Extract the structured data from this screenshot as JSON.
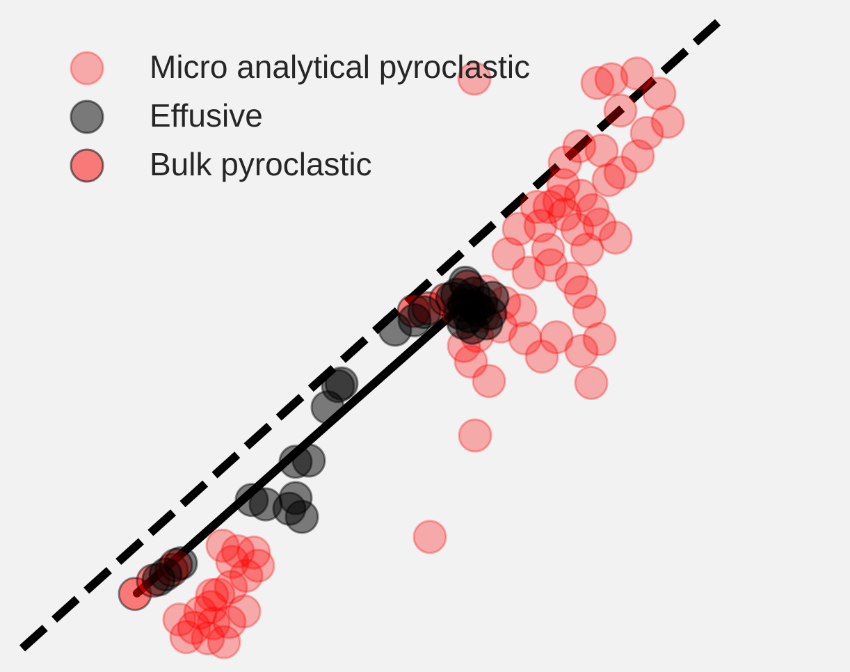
{
  "chart_data": {
    "type": "scatter",
    "title": "",
    "xlabel": "",
    "ylabel": "",
    "xlim": [
      0,
      100
    ],
    "ylim": [
      0,
      100
    ],
    "grid": false,
    "legend_position": "top-left",
    "series": [
      {
        "name": "Micro analytical pyroclastic",
        "color": "#ff0000",
        "opacity": 0.3,
        "points": [
          [
            82.7,
            90.3
          ],
          [
            84.7,
            90.9
          ],
          [
            86.0,
            85.9
          ],
          [
            88.4,
            91.8
          ],
          [
            91.6,
            88.6
          ],
          [
            92.8,
            84.1
          ],
          [
            89.8,
            82.3
          ],
          [
            88.5,
            78.6
          ],
          [
            86.0,
            76.0
          ],
          [
            83.3,
            79.5
          ],
          [
            80.1,
            80.2
          ],
          [
            78.0,
            77.6
          ],
          [
            77.8,
            74.0
          ],
          [
            77.2,
            71.4
          ],
          [
            78.0,
            69.3
          ],
          [
            80.3,
            72.3
          ],
          [
            82.0,
            70.0
          ],
          [
            84.3,
            74.8
          ],
          [
            83.0,
            67.7
          ],
          [
            85.3,
            65.6
          ],
          [
            81.2,
            63.7
          ],
          [
            79.8,
            66.9
          ],
          [
            75.6,
            63.7
          ],
          [
            74.5,
            67.5
          ],
          [
            75.8,
            70.5
          ],
          [
            71.4,
            67.0
          ],
          [
            69.9,
            63.0
          ],
          [
            72.8,
            60.0
          ],
          [
            76.0,
            61.2
          ],
          [
            79.0,
            59.1
          ],
          [
            80.3,
            56.9
          ],
          [
            81.5,
            53.8
          ],
          [
            83.0,
            49.4
          ],
          [
            80.4,
            47.5
          ],
          [
            81.8,
            42.4
          ],
          [
            76.8,
            49.7
          ],
          [
            74.7,
            46.6
          ],
          [
            72.3,
            49.5
          ],
          [
            71.6,
            54.0
          ],
          [
            69.3,
            55.2
          ],
          [
            66.3,
            53.1
          ],
          [
            68.8,
            51.4
          ],
          [
            65.4,
            49.9
          ],
          [
            63.5,
            48.3
          ],
          [
            64.5,
            45.8
          ],
          [
            66.6,
            57.0
          ],
          [
            62.6,
            53.8
          ],
          [
            67.1,
            42.7
          ],
          [
            65.1,
            34.0
          ],
          [
            58.6,
            17.8
          ],
          [
            65.0,
            91.0
          ],
          [
            74.0,
            70.5
          ],
          [
            33.9,
            13.2
          ],
          [
            32.2,
            11.6
          ],
          [
            30.0,
            9.8
          ],
          [
            28.2,
            8.6
          ],
          [
            27.1,
            6.6
          ],
          [
            25.6,
            5.7
          ],
          [
            24.7,
            3.3
          ],
          [
            26.7,
            1.6
          ],
          [
            29.0,
            1.0
          ],
          [
            23.6,
            1.8
          ],
          [
            22.6,
            4.6
          ],
          [
            27.5,
            4.0
          ],
          [
            29.8,
            4.2
          ],
          [
            31.9,
            5.9
          ],
          [
            30.2,
            13.8
          ],
          [
            28.8,
            16.4
          ],
          [
            31.0,
            15.5
          ],
          [
            33.3,
            15.3
          ],
          [
            27.3,
            8.5
          ]
        ]
      },
      {
        "name": "Effusive",
        "color": "#000000",
        "opacity": 0.5,
        "points": [
          [
            20.6,
            11.8
          ],
          [
            19.6,
            11.0
          ],
          [
            22.8,
            13.6
          ],
          [
            33.0,
            23.7
          ],
          [
            35.0,
            23.0
          ],
          [
            38.4,
            22.3
          ],
          [
            39.3,
            24.0
          ],
          [
            40.2,
            21.0
          ],
          [
            39.3,
            29.8
          ],
          [
            41.2,
            30.0
          ],
          [
            43.9,
            38.5
          ],
          [
            45.4,
            41.9
          ],
          [
            45.9,
            42.3
          ],
          [
            53.6,
            50.9
          ],
          [
            56.4,
            52.4
          ],
          [
            57.8,
            53.7
          ],
          [
            61.8,
            55.9
          ],
          [
            63.4,
            52.0
          ],
          [
            64.7,
            51.2
          ],
          [
            66.7,
            51.9
          ],
          [
            67.3,
            53.5
          ],
          [
            67.6,
            56.0
          ],
          [
            65.0,
            54.6
          ],
          [
            63.5,
            54.8
          ],
          [
            62.5,
            56.5
          ],
          [
            63.7,
            58.4
          ],
          [
            64.3,
            53.0
          ],
          [
            66.0,
            55.2
          ],
          [
            64.0,
            55.6
          ],
          [
            64.9,
            56.7
          ],
          [
            65.6,
            54.0
          ],
          [
            63.0,
            53.5
          ]
        ]
      },
      {
        "name": "Bulk pyroclastic",
        "color": "#ff0000",
        "opacity": 0.5,
        "points": [
          [
            16.2,
            8.7
          ],
          [
            18.8,
            10.8
          ],
          [
            21.5,
            12.5
          ],
          [
            22.1,
            13.3
          ],
          [
            56.3,
            53.9
          ],
          [
            58.4,
            54.3
          ],
          [
            60.9,
            55.7
          ],
          [
            64.0,
            57.8
          ]
        ]
      }
    ],
    "reference_lines": [
      {
        "style": "dashed",
        "color": "#000000",
        "x": [
          0,
          100
        ],
        "y": [
          0,
          100
        ]
      },
      {
        "style": "solid",
        "color": "#000000",
        "x": [
          16.5,
          64.0
        ],
        "y": [
          8.8,
          55.5
        ]
      }
    ]
  }
}
